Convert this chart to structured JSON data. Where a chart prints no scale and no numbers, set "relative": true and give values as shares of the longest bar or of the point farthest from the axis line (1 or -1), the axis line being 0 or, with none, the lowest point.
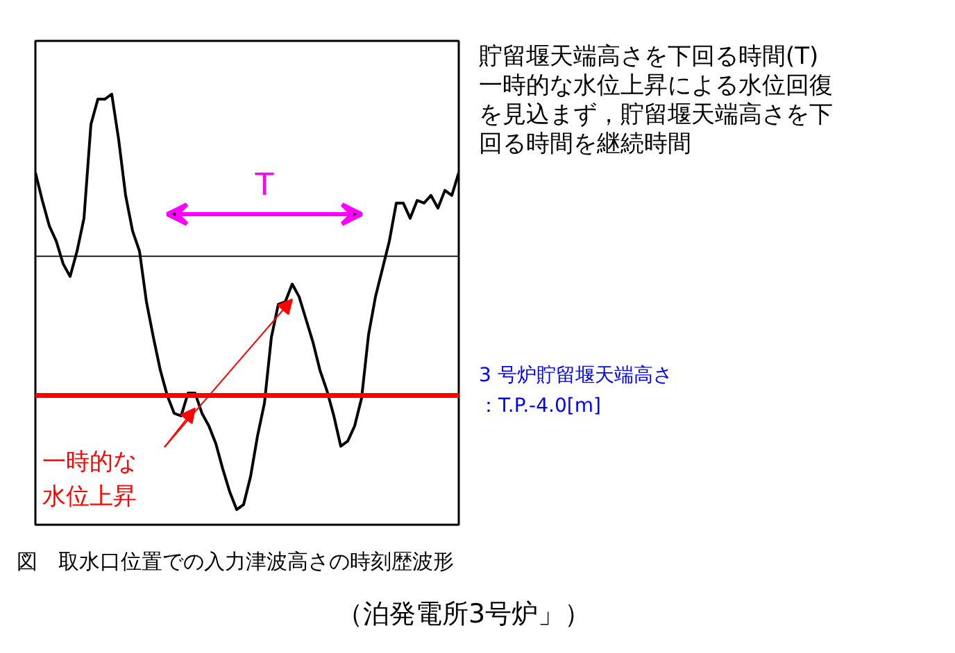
{
  "chart_data": {
    "type": "line",
    "relative": true,
    "grid": false,
    "tick_labels": false,
    "marker": "none",
    "line_style": "solid",
    "title": "図　取水口位置での入力津波高さの時刻歴波形",
    "subtitle": "（泊発電所3号炉」）",
    "categories": [
      null,
      null,
      null,
      null,
      null,
      null,
      null,
      null,
      null,
      null,
      null,
      null,
      null,
      null,
      null,
      null,
      null,
      null,
      null,
      null,
      null,
      null,
      null,
      null,
      null,
      null,
      null,
      null,
      null,
      null,
      null,
      null,
      null,
      null,
      null,
      null,
      null,
      null,
      null,
      null,
      null,
      null,
      null,
      null,
      null,
      null,
      null,
      null,
      null,
      null,
      null,
      null,
      null,
      null,
      null,
      null,
      null,
      null,
      null,
      null,
      null,
      null
    ],
    "series": [
      {
        "color": "#000000",
        "values": [
          0.33,
          0.22,
          0.12,
          0.06,
          -0.03,
          -0.08,
          0.02,
          0.15,
          0.52,
          0.62,
          0.62,
          0.64,
          0.46,
          0.24,
          0.1,
          0.02,
          -0.18,
          -0.32,
          -0.45,
          -0.55,
          -0.62,
          -0.63,
          -0.54,
          -0.54,
          -0.62,
          -0.67,
          -0.74,
          -0.84,
          -0.93,
          -1.0,
          -0.98,
          -0.87,
          -0.71,
          -0.58,
          -0.32,
          -0.19,
          -0.18,
          -0.11,
          -0.16,
          -0.25,
          -0.34,
          -0.45,
          -0.53,
          -0.63,
          -0.75,
          -0.73,
          -0.67,
          -0.56,
          -0.31,
          -0.16,
          -0.05,
          0.06,
          0.21,
          0.21,
          0.15,
          0.22,
          0.21,
          0.24,
          0.19,
          0.26,
          0.24,
          0.33
        ]
      }
    ],
    "ref_lines": [
      {
        "axis": "y",
        "value": -0.55,
        "label": "3 号炉貯留堰天端高さ：T.P.-4.0[m]",
        "color": "#ff0000"
      }
    ],
    "annotations": [
      "貯留堰天端高さを下回る時間(T)",
      "一時的な水位上昇による水位回復を見込まず，貯留堰天端高さを下回る時間を継続時間",
      "T",
      "一時的な水位上昇"
    ]
  }
}
